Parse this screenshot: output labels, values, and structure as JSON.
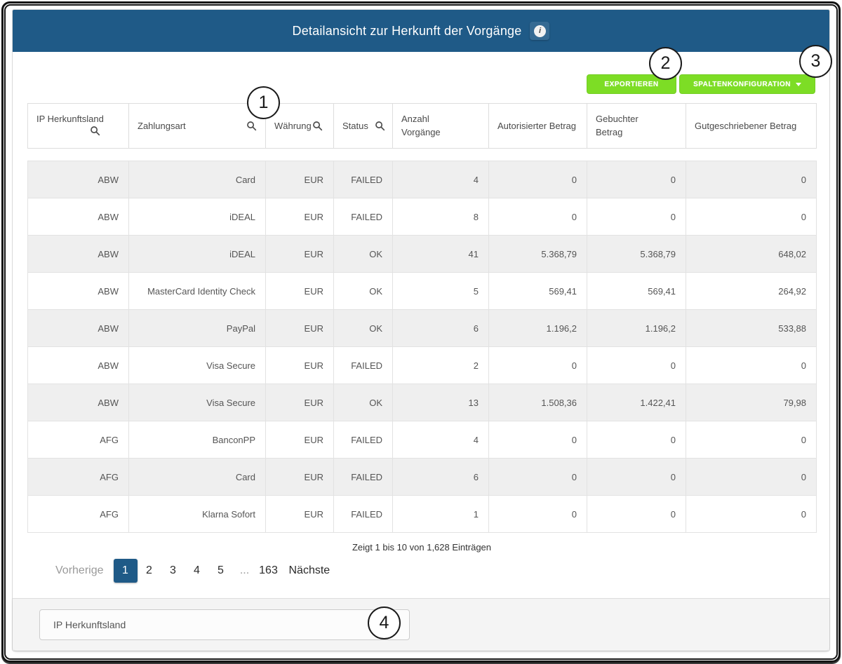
{
  "header": {
    "title": "Detailansicht zur Herkunft der Vorgänge"
  },
  "toolbar": {
    "export_label": "EXPORTIEREN",
    "column_config_label": "SPALTENKONFIGURATION"
  },
  "table": {
    "columns": [
      {
        "label": "IP Herkunftsland",
        "searchable": true
      },
      {
        "label": "Zahlungsart",
        "searchable": true
      },
      {
        "label": "Währung",
        "searchable": true
      },
      {
        "label": "Status",
        "searchable": true
      },
      {
        "label": "Anzahl Vorgänge",
        "searchable": false
      },
      {
        "label": "Autorisierter Betrag",
        "searchable": false
      },
      {
        "label": "Gebuchter Betrag",
        "searchable": false
      },
      {
        "label": "Gutgeschriebener Betrag",
        "searchable": false
      }
    ],
    "rows": [
      [
        "ABW",
        "Card",
        "EUR",
        "FAILED",
        "4",
        "0",
        "0",
        "0"
      ],
      [
        "ABW",
        "iDEAL",
        "EUR",
        "FAILED",
        "8",
        "0",
        "0",
        "0"
      ],
      [
        "ABW",
        "iDEAL",
        "EUR",
        "OK",
        "41",
        "5.368,79",
        "5.368,79",
        "648,02"
      ],
      [
        "ABW",
        "MasterCard Identity Check",
        "EUR",
        "OK",
        "5",
        "569,41",
        "569,41",
        "264,92"
      ],
      [
        "ABW",
        "PayPal",
        "EUR",
        "OK",
        "6",
        "1.196,2",
        "1.196,2",
        "533,88"
      ],
      [
        "ABW",
        "Visa Secure",
        "EUR",
        "FAILED",
        "2",
        "0",
        "0",
        "0"
      ],
      [
        "ABW",
        "Visa Secure",
        "EUR",
        "OK",
        "13",
        "1.508,36",
        "1.422,41",
        "79,98"
      ],
      [
        "AFG",
        "BanconPP",
        "EUR",
        "FAILED",
        "4",
        "0",
        "0",
        "0"
      ],
      [
        "AFG",
        "Card",
        "EUR",
        "FAILED",
        "6",
        "0",
        "0",
        "0"
      ],
      [
        "AFG",
        "Klarna Sofort",
        "EUR",
        "FAILED",
        "1",
        "0",
        "0",
        "0"
      ]
    ]
  },
  "summary": {
    "text": "Zeigt 1 bis 10 von 1,628 Einträgen"
  },
  "pagination": {
    "previous_label": "Vorherige",
    "pages": [
      "1",
      "2",
      "3",
      "4",
      "5",
      "...",
      "163"
    ],
    "active_page": "1",
    "next_label": "Nächste"
  },
  "footer": {
    "filter_value": "IP Herkunftsland"
  },
  "callouts": [
    "1",
    "2",
    "3",
    "4"
  ],
  "colors": {
    "header_blue": "#1f5a87",
    "button_green": "#7ddd25",
    "active_page_blue": "#1f5a87",
    "row_stripe_gray": "#efefef"
  }
}
